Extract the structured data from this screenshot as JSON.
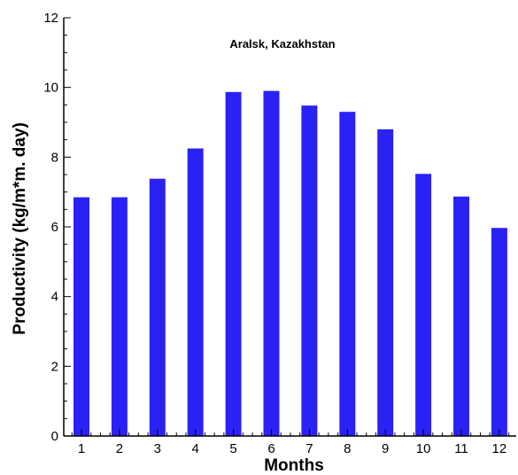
{
  "chart_data": {
    "type": "bar",
    "title": "Aralsk, Kazakhstan",
    "xlabel": "Months",
    "ylabel": "Productivity (kg/m*m. day)",
    "categories": [
      "1",
      "2",
      "3",
      "4",
      "5",
      "6",
      "7",
      "8",
      "9",
      "10",
      "11",
      "12"
    ],
    "values": [
      6.85,
      6.85,
      7.38,
      8.25,
      9.87,
      9.9,
      9.48,
      9.3,
      8.8,
      7.52,
      6.87,
      5.97
    ],
    "ylim": [
      0,
      12
    ],
    "yticks": [
      "0",
      "2",
      "4",
      "6",
      "8",
      "10",
      "12"
    ],
    "grid": false,
    "bar_color": "#2a22f5"
  }
}
